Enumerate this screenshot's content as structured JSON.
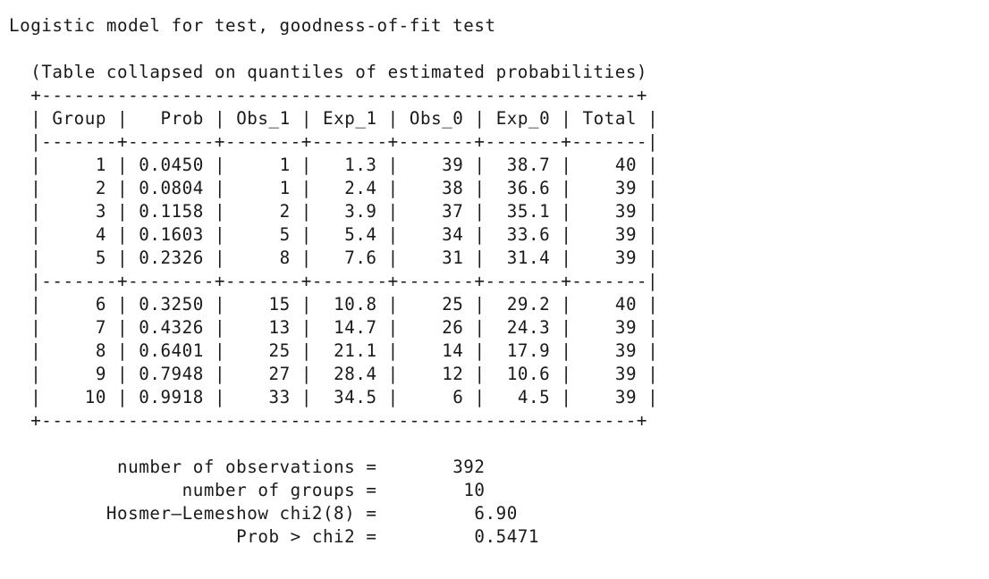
{
  "title": "Logistic model for test, goodness-of-fit test",
  "subtitle": "(Table collapsed on quantiles of estimated probabilities)",
  "table": {
    "columns": [
      "Group",
      "Prob",
      "Obs_1",
      "Exp_1",
      "Obs_0",
      "Exp_0",
      "Total"
    ],
    "rows": [
      [
        "1",
        "0.0450",
        "1",
        "1.3",
        "39",
        "38.7",
        "40"
      ],
      [
        "2",
        "0.0804",
        "1",
        "2.4",
        "38",
        "36.6",
        "39"
      ],
      [
        "3",
        "0.1158",
        "2",
        "3.9",
        "37",
        "35.1",
        "39"
      ],
      [
        "4",
        "0.1603",
        "5",
        "5.4",
        "34",
        "33.6",
        "39"
      ],
      [
        "5",
        "0.2326",
        "8",
        "7.6",
        "31",
        "31.4",
        "39"
      ],
      [
        "6",
        "0.3250",
        "15",
        "10.8",
        "25",
        "29.2",
        "40"
      ],
      [
        "7",
        "0.4326",
        "13",
        "14.7",
        "26",
        "24.3",
        "39"
      ],
      [
        "8",
        "0.6401",
        "25",
        "21.1",
        "14",
        "17.9",
        "39"
      ],
      [
        "9",
        "0.7948",
        "27",
        "28.4",
        "12",
        "10.6",
        "39"
      ],
      [
        "10",
        "0.9918",
        "33",
        "34.5",
        "6",
        "4.5",
        "39"
      ]
    ]
  },
  "stats": [
    {
      "label": "number of observations",
      "value": "392"
    },
    {
      "label": "number of groups",
      "value": "10"
    },
    {
      "label": "Hosmer–Lemeshow chi2(8)",
      "value": "6.90"
    },
    {
      "label": "Prob > chi2",
      "value": "0.5471"
    }
  ]
}
